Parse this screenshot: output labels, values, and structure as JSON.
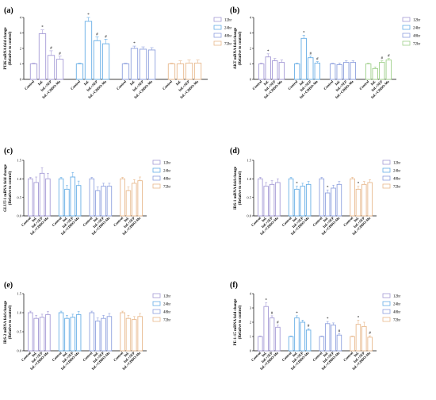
{
  "chart_data": [
    {
      "panel": "(a)",
      "type": "bar",
      "ylabel_line1": "PI3K mRNA fold change",
      "ylabel_line2": "(Relative to control)",
      "ylim": [
        0,
        4
      ],
      "yticks": [
        "0",
        "1",
        "2",
        "3",
        "4"
      ],
      "legend": [
        "12hr",
        "24hr",
        "48hr",
        "72hr"
      ],
      "legend_position": "top-right",
      "grid": false,
      "categories": [
        "Control",
        "Inf.",
        "Inf.+SEP",
        "Inf.+CDDO-Me"
      ],
      "groups": [
        {
          "name": "12hr",
          "color": "#a59bd6",
          "values": [
            1.0,
            2.95,
            1.55,
            1.3
          ],
          "errors": [
            0.04,
            0.25,
            0.3,
            0.2
          ],
          "marks": [
            "",
            "*",
            "#",
            "#"
          ]
        },
        {
          "name": "24hr",
          "color": "#67aee6",
          "values": [
            1.0,
            3.75,
            2.5,
            2.3
          ],
          "errors": [
            0.04,
            0.25,
            0.25,
            0.3
          ],
          "marks": [
            "",
            "*",
            "#",
            "#"
          ]
        },
        {
          "name": "48hr",
          "color": "#8ea0de",
          "values": [
            1.0,
            2.0,
            1.95,
            1.9
          ],
          "errors": [
            0.04,
            0.15,
            0.15,
            0.15
          ],
          "marks": [
            "",
            "*",
            "",
            ""
          ]
        },
        {
          "name": "72hr",
          "color": "#e8b98d",
          "values": [
            1.0,
            1.0,
            1.05,
            1.05
          ],
          "errors": [
            0.04,
            0.2,
            0.2,
            0.2
          ],
          "marks": [
            "",
            "",
            "",
            ""
          ]
        }
      ]
    },
    {
      "panel": "(b)",
      "type": "bar",
      "ylabel_line1": "AKT mRNA fold change",
      "ylabel_line2": "(Relative to control)",
      "ylim": [
        0,
        4
      ],
      "yticks": [
        "0",
        "1",
        "2",
        "3",
        "4"
      ],
      "legend": [
        "12hr",
        "24hr",
        "48hr",
        "72hr"
      ],
      "legend_position": "top-right",
      "grid": false,
      "categories": [
        "Control",
        "Inf.",
        "Inf.+SEP",
        "Inf.+CDDO-Me"
      ],
      "groups": [
        {
          "name": "12hr",
          "color": "#a59bd6",
          "values": [
            1.0,
            1.45,
            1.2,
            1.1
          ],
          "errors": [
            0.04,
            0.2,
            0.15,
            0.15
          ],
          "marks": [
            "",
            "*",
            "",
            ""
          ]
        },
        {
          "name": "24hr",
          "color": "#67aee6",
          "values": [
            1.0,
            2.65,
            1.4,
            1.05
          ],
          "errors": [
            0.04,
            0.2,
            0.1,
            0.1
          ],
          "marks": [
            "",
            "*",
            "#",
            "#"
          ]
        },
        {
          "name": "48hr",
          "color": "#8ea0de",
          "values": [
            1.0,
            0.95,
            1.1,
            1.1
          ],
          "errors": [
            0.04,
            0.1,
            0.1,
            0.1
          ],
          "marks": [
            "",
            "",
            "",
            ""
          ]
        },
        {
          "name": "72hr",
          "color": "#9fd08a",
          "values": [
            1.0,
            0.7,
            1.1,
            1.25
          ],
          "errors": [
            0.04,
            0.1,
            0.1,
            0.1
          ],
          "marks": [
            "",
            "",
            "#",
            "#"
          ]
        }
      ]
    },
    {
      "panel": "(c)",
      "type": "bar",
      "ylabel_line1": "GLUT-1 mRNA fold change",
      "ylabel_line2": "(Relative to control)",
      "ylim": [
        0,
        1.5
      ],
      "yticks": [
        "0.0",
        "0.5",
        "1.0",
        "1.5"
      ],
      "legend": [
        "12hr",
        "24hr",
        "48hr",
        "72hr"
      ],
      "legend_position": "top-right",
      "grid": false,
      "categories": [
        "Control",
        "Inf.",
        "Inf.+SEP",
        "Inf.+CDDO-Me"
      ],
      "groups": [
        {
          "name": "12hr",
          "color": "#a59bd6",
          "values": [
            1.0,
            0.9,
            1.15,
            1.0
          ],
          "errors": [
            0.04,
            0.15,
            0.15,
            0.15
          ],
          "marks": [
            "",
            "",
            "",
            ""
          ]
        },
        {
          "name": "24hr",
          "color": "#67aee6",
          "values": [
            1.0,
            0.72,
            1.05,
            0.82
          ],
          "errors": [
            0.04,
            0.1,
            0.12,
            0.12
          ],
          "marks": [
            "",
            "",
            "",
            ""
          ]
        },
        {
          "name": "48hr",
          "color": "#8ea0de",
          "values": [
            1.0,
            0.68,
            0.8,
            0.8
          ],
          "errors": [
            0.04,
            0.1,
            0.08,
            0.08
          ],
          "marks": [
            "",
            "",
            "",
            ""
          ]
        },
        {
          "name": "72hr",
          "color": "#e8b98d",
          "values": [
            1.0,
            0.68,
            0.88,
            0.95
          ],
          "errors": [
            0.04,
            0.1,
            0.1,
            0.1
          ],
          "marks": [
            "",
            "",
            "",
            ""
          ]
        }
      ]
    },
    {
      "panel": "(d)",
      "type": "bar",
      "ylabel_line1": "IRS-1 mRNA fold change",
      "ylabel_line2": "(Relative to control)",
      "ylim": [
        0,
        1.5
      ],
      "yticks": [
        "0.0",
        "0.5",
        "1.0",
        "1.5"
      ],
      "legend": [
        "12hr",
        "24hr",
        "48hr",
        "72hr"
      ],
      "legend_position": "top-right",
      "grid": false,
      "categories": [
        "Control",
        "Inf.",
        "Inf.+SEP",
        "Inf.+CDDO-Me"
      ],
      "groups": [
        {
          "name": "12hr",
          "color": "#a59bd6",
          "values": [
            1.0,
            0.8,
            0.85,
            0.9
          ],
          "errors": [
            0.04,
            0.1,
            0.1,
            0.1
          ],
          "marks": [
            "",
            "",
            "",
            ""
          ]
        },
        {
          "name": "24hr",
          "color": "#67aee6",
          "values": [
            1.0,
            0.72,
            0.8,
            0.85
          ],
          "errors": [
            0.04,
            0.08,
            0.08,
            0.08
          ],
          "marks": [
            "",
            "*",
            "",
            ""
          ]
        },
        {
          "name": "48hr",
          "color": "#8ea0de",
          "values": [
            1.0,
            0.62,
            0.75,
            0.85
          ],
          "errors": [
            0.04,
            0.08,
            0.08,
            0.08
          ],
          "marks": [
            "",
            "*",
            "",
            ""
          ]
        },
        {
          "name": "72hr",
          "color": "#e8b98d",
          "values": [
            1.0,
            0.72,
            0.85,
            0.9
          ],
          "errors": [
            0.04,
            0.08,
            0.08,
            0.08
          ],
          "marks": [
            "",
            "*",
            "",
            ""
          ]
        }
      ]
    },
    {
      "panel": "(e)",
      "type": "bar",
      "ylabel_line1": "IRS-2 mRNA fold change",
      "ylabel_line2": "(Relative to control)",
      "ylim": [
        0,
        1.5
      ],
      "yticks": [
        "0.0",
        "0.5",
        "1.0",
        "1.5"
      ],
      "legend": [
        "12hr",
        "24hr",
        "48hr",
        "72hr"
      ],
      "legend_position": "top-right",
      "grid": false,
      "categories": [
        "Control",
        "Inf.",
        "Inf.+SEP",
        "Inf.+CDDO-Me"
      ],
      "groups": [
        {
          "name": "12hr",
          "color": "#a59bd6",
          "values": [
            1.0,
            0.85,
            0.88,
            0.95
          ],
          "errors": [
            0.04,
            0.08,
            0.08,
            0.08
          ],
          "marks": [
            "",
            "",
            "",
            ""
          ]
        },
        {
          "name": "24hr",
          "color": "#67aee6",
          "values": [
            1.0,
            0.85,
            0.88,
            0.95
          ],
          "errors": [
            0.04,
            0.08,
            0.08,
            0.08
          ],
          "marks": [
            "",
            "",
            "",
            ""
          ]
        },
        {
          "name": "48hr",
          "color": "#8ea0de",
          "values": [
            1.0,
            0.78,
            0.85,
            0.9
          ],
          "errors": [
            0.04,
            0.08,
            0.08,
            0.08
          ],
          "marks": [
            "",
            "",
            "",
            ""
          ]
        },
        {
          "name": "72hr",
          "color": "#e8b98d",
          "values": [
            1.0,
            0.85,
            0.82,
            0.9
          ],
          "errors": [
            0.04,
            0.08,
            0.08,
            0.08
          ],
          "marks": [
            "",
            "",
            "",
            ""
          ]
        }
      ]
    },
    {
      "panel": "(f)",
      "type": "bar",
      "ylabel_line1": "PE-1-15 mRNA fold change",
      "ylabel_line2": "(Relative to control)",
      "ylim": [
        0,
        4
      ],
      "yticks": [
        "0",
        "1",
        "2",
        "3",
        "4"
      ],
      "legend": [
        "12hr",
        "24hr",
        "48hr",
        "72hr"
      ],
      "legend_position": "top-right",
      "grid": false,
      "categories": [
        "Control",
        "Inf.",
        "Inf.+SEP",
        "Inf.+CDDO-Me"
      ],
      "groups": [
        {
          "name": "12hr",
          "color": "#a59bd6",
          "values": [
            1.0,
            3.1,
            2.3,
            1.65
          ],
          "errors": [
            0.04,
            0.25,
            0.15,
            0.15
          ],
          "marks": [
            "",
            "*",
            "#",
            "#"
          ]
        },
        {
          "name": "24hr",
          "color": "#67aee6",
          "values": [
            1.0,
            2.3,
            2.0,
            1.45
          ],
          "errors": [
            0.04,
            0.15,
            0.15,
            0.1
          ],
          "marks": [
            "",
            "*",
            "",
            "#"
          ]
        },
        {
          "name": "48hr",
          "color": "#8ea0de",
          "values": [
            1.0,
            1.9,
            1.8,
            1.1
          ],
          "errors": [
            0.04,
            0.15,
            0.15,
            0.1
          ],
          "marks": [
            "",
            "*",
            "",
            "#"
          ]
        },
        {
          "name": "72hr",
          "color": "#e8b98d",
          "values": [
            1.0,
            1.85,
            1.7,
            0.95
          ],
          "errors": [
            0.04,
            0.3,
            0.3,
            0.1
          ],
          "marks": [
            "",
            "*",
            "",
            "#"
          ]
        }
      ]
    }
  ]
}
